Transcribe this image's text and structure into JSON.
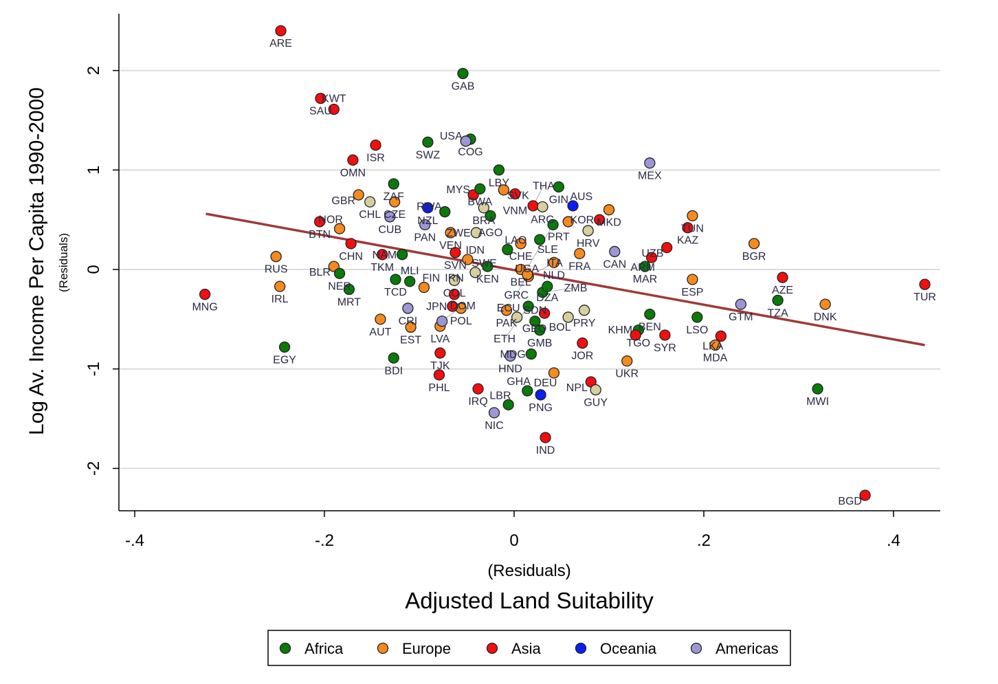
{
  "chart_data": {
    "type": "scatter",
    "ylabel": "Log Av. Income Per Capita 1990-2000",
    "ylabel_sub": "(Residuals)",
    "xlabel_sub": "(Residuals)",
    "xlabel": "Adjusted Land Suitability",
    "xlim": [
      -0.42,
      0.45
    ],
    "ylim": [
      -2.4,
      2.55
    ],
    "xticks": [
      {
        "v": -0.4,
        "label": "-.4"
      },
      {
        "v": -0.2,
        "label": "-.2"
      },
      {
        "v": 0,
        "label": "0"
      },
      {
        "v": 0.2,
        "label": ".2"
      },
      {
        "v": 0.4,
        "label": ".4"
      }
    ],
    "yticks": [
      {
        "v": -2,
        "label": "-2"
      },
      {
        "v": -1,
        "label": "-1"
      },
      {
        "v": 0,
        "label": "0"
      },
      {
        "v": 1,
        "label": "1"
      },
      {
        "v": 2,
        "label": "2"
      }
    ],
    "grid": "horizontal",
    "legend_position": "bottom",
    "groups": [
      {
        "key": "A",
        "name": "Africa",
        "color": "#0a7a0a"
      },
      {
        "key": "E",
        "name": "Europe",
        "color": "#f58a1f"
      },
      {
        "key": "S",
        "name": "Asia",
        "color": "#f20f0f"
      },
      {
        "key": "O",
        "name": "Oceania",
        "color": "#0a1ef5"
      },
      {
        "key": "M",
        "name": "Americas",
        "color": "#9c97d4"
      },
      {
        "key": "U",
        "name": "",
        "color": "#d6cfa0"
      }
    ],
    "fit_line": {
      "x": [
        -0.325,
        0.433
      ],
      "y": [
        0.56,
        -0.76
      ],
      "color": "#9e3a3a"
    },
    "points": [
      [
        "ARE",
        "S",
        -0.246,
        2.4
      ],
      [
        "GAB",
        "A",
        -0.054,
        1.97
      ],
      [
        "SAU",
        "S",
        -0.204,
        1.72
      ],
      [
        "KWT",
        "S",
        -0.19,
        1.61
      ],
      [
        "ISR",
        "S",
        -0.146,
        1.25
      ],
      [
        "SWZ",
        "A",
        -0.091,
        1.28
      ],
      [
        "COG",
        "A",
        -0.046,
        1.31
      ],
      [
        "USA",
        "M",
        -0.051,
        1.29
      ],
      [
        "OMN",
        "S",
        -0.17,
        1.1
      ],
      [
        "LBY",
        "A",
        -0.016,
        1.0
      ],
      [
        "MEX",
        "M",
        0.143,
        1.07
      ],
      [
        "ZAF",
        "A",
        -0.127,
        0.86
      ],
      [
        "GBR",
        "E",
        -0.164,
        0.75
      ],
      [
        "CHL",
        "U",
        -0.152,
        0.68
      ],
      [
        "CZE",
        "E",
        -0.126,
        0.68
      ],
      [
        "CUB",
        "M",
        -0.131,
        0.53
      ],
      [
        "GIN",
        "A",
        0.047,
        0.83
      ],
      [
        "NZL",
        "O",
        -0.091,
        0.62
      ],
      [
        "RWA",
        "A",
        -0.073,
        0.58
      ],
      [
        "MYS",
        "S",
        -0.043,
        0.75
      ],
      [
        "BWA",
        "A",
        -0.036,
        0.81
      ],
      [
        "SVK",
        "E",
        -0.011,
        0.8
      ],
      [
        "VNM",
        "S",
        0.001,
        0.76
      ],
      [
        "BRA",
        "U",
        -0.032,
        0.62
      ],
      [
        "AGO",
        "A",
        -0.025,
        0.54
      ],
      [
        "THA",
        "S",
        0.02,
        0.64
      ],
      [
        "ARG",
        "U",
        0.03,
        0.63
      ],
      [
        "AUS",
        "O",
        0.062,
        0.64
      ],
      [
        "PRT",
        "E",
        0.057,
        0.48
      ],
      [
        "PAN",
        "M",
        -0.094,
        0.45
      ],
      [
        "ZWE",
        "U",
        -0.04,
        0.37
      ],
      [
        "MKD",
        "E",
        0.1,
        0.6
      ],
      [
        "KOR",
        "S",
        0.09,
        0.5
      ],
      [
        "HRV",
        "U",
        0.078,
        0.39
      ],
      [
        "BTN",
        "S",
        -0.205,
        0.48
      ],
      [
        "NOR",
        "E",
        -0.184,
        0.41
      ],
      [
        "CHN",
        "S",
        -0.172,
        0.26
      ],
      [
        "RUS",
        "E",
        -0.251,
        0.13
      ],
      [
        "SVN",
        "S",
        -0.062,
        0.17
      ],
      [
        "VEN",
        "E",
        -0.067,
        0.37
      ],
      [
        "LAO",
        "A",
        -0.007,
        0.2
      ],
      [
        "CHE",
        "E",
        0.007,
        0.26
      ],
      [
        "SLE",
        "A",
        0.027,
        0.3
      ],
      [
        "UGA",
        "A",
        0.041,
        0.45
      ],
      [
        "FRA",
        "E",
        0.069,
        0.16
      ],
      [
        "CAN",
        "M",
        0.106,
        0.18
      ],
      [
        "NLD",
        "E",
        0.042,
        0.07
      ],
      [
        "TKM",
        "S",
        -0.139,
        0.15
      ],
      [
        "NAM",
        "A",
        -0.118,
        0.15
      ],
      [
        "IDN",
        "E",
        -0.049,
        0.1
      ],
      [
        "BEL",
        "E",
        0.007,
        0.0
      ],
      [
        "KEN",
        "A",
        -0.028,
        0.03
      ],
      [
        "SWE",
        "U",
        -0.041,
        -0.03
      ],
      [
        "COL",
        "U",
        -0.063,
        -0.11
      ],
      [
        "ITA",
        "E",
        0.015,
        -0.07
      ],
      [
        "GRC",
        "E",
        0.014,
        -0.05
      ],
      [
        "BLR",
        "E",
        -0.19,
        0.03
      ],
      [
        "NER",
        "A",
        -0.184,
        -0.04
      ],
      [
        "MRT",
        "A",
        -0.174,
        -0.2
      ],
      [
        "IRL",
        "E",
        -0.247,
        -0.17
      ],
      [
        "MNG",
        "S",
        -0.326,
        -0.25
      ],
      [
        "TCD",
        "A",
        -0.125,
        -0.1
      ],
      [
        "MLI",
        "A",
        -0.11,
        -0.12
      ],
      [
        "FIN",
        "E",
        -0.095,
        -0.18
      ],
      [
        "IRN",
        "S",
        -0.063,
        -0.25
      ],
      [
        "GTM",
        "M",
        0.239,
        -0.35
      ],
      [
        "MAR",
        "A",
        0.138,
        0.03
      ],
      [
        "ARM",
        "S",
        0.145,
        0.12
      ],
      [
        "UZB",
        "S",
        0.161,
        0.22
      ],
      [
        "KAZ",
        "S",
        0.183,
        0.42
      ],
      [
        "TUN",
        "E",
        0.188,
        0.54
      ],
      [
        "ESP",
        "E",
        0.188,
        -0.1
      ],
      [
        "BGR",
        "E",
        0.253,
        0.26
      ],
      [
        "AZE",
        "S",
        0.283,
        -0.08
      ],
      [
        "TZA",
        "A",
        0.278,
        -0.31
      ],
      [
        "DNK",
        "E",
        0.328,
        -0.35
      ],
      [
        "TUR",
        "S",
        0.433,
        -0.15
      ],
      [
        "LSO",
        "A",
        0.193,
        -0.48
      ],
      [
        "LKA",
        "S",
        0.218,
        -0.67
      ],
      [
        "MDA",
        "E",
        0.212,
        -0.76
      ],
      [
        "SYR",
        "S",
        0.159,
        -0.66
      ],
      [
        "BEN",
        "A",
        0.143,
        -0.45
      ],
      [
        "TGO",
        "A",
        0.131,
        -0.61
      ],
      [
        "KHM",
        "S",
        0.128,
        -0.66
      ],
      [
        "UKR",
        "E",
        0.119,
        -0.92
      ],
      [
        "JOR",
        "S",
        0.072,
        -0.74
      ],
      [
        "PRY",
        "U",
        0.074,
        -0.41
      ],
      [
        "BOL",
        "U",
        0.057,
        -0.48
      ],
      [
        "NPL",
        "S",
        0.081,
        -1.13
      ],
      [
        "GUY",
        "U",
        0.086,
        -1.21
      ],
      [
        "DEU",
        "E",
        0.042,
        -1.04
      ],
      [
        "PNG",
        "O",
        0.028,
        -1.26
      ],
      [
        "GHA",
        "A",
        0.014,
        -1.22
      ],
      [
        "LBR",
        "A",
        -0.006,
        -1.36
      ],
      [
        "NIC",
        "M",
        -0.021,
        -1.44
      ],
      [
        "IND",
        "S",
        0.033,
        -1.69
      ],
      [
        "IRQ",
        "S",
        -0.038,
        -1.2
      ],
      [
        "HND",
        "M",
        -0.004,
        -0.87
      ],
      [
        "MDG",
        "A",
        0.018,
        -0.85
      ],
      [
        "GMB",
        "A",
        0.027,
        -0.61
      ],
      [
        "ECU",
        "U",
        0.003,
        -0.48
      ],
      [
        "PAK",
        "E",
        -0.008,
        -0.41
      ],
      [
        "SDN",
        "A",
        0.022,
        -0.52
      ],
      [
        "ETH",
        "A",
        0.015,
        -0.37
      ],
      [
        "ZMB",
        "A",
        0.03,
        -0.23
      ],
      [
        "DZA",
        "A",
        0.035,
        -0.17
      ],
      [
        "GEO",
        "S",
        0.032,
        -0.44
      ],
      [
        "BDI",
        "A",
        -0.127,
        -0.89
      ],
      [
        "TJK",
        "S",
        -0.078,
        -0.84
      ],
      [
        "PHL",
        "S",
        -0.079,
        -1.06
      ],
      [
        "EGY",
        "A",
        -0.242,
        -0.78
      ],
      [
        "AUT",
        "E",
        -0.141,
        -0.5
      ],
      [
        "EST",
        "E",
        -0.109,
        -0.58
      ],
      [
        "CRI",
        "M",
        -0.112,
        -0.39
      ],
      [
        "LVA",
        "E",
        -0.078,
        -0.57
      ],
      [
        "DOM",
        "M",
        -0.076,
        -0.52
      ],
      [
        "POL",
        "E",
        -0.056,
        -0.39
      ],
      [
        "JPN",
        "S",
        -0.065,
        -0.37
      ],
      [
        "MWI",
        "A",
        0.32,
        -1.2
      ],
      [
        "BGD",
        "S",
        0.37,
        -2.27
      ]
    ]
  }
}
